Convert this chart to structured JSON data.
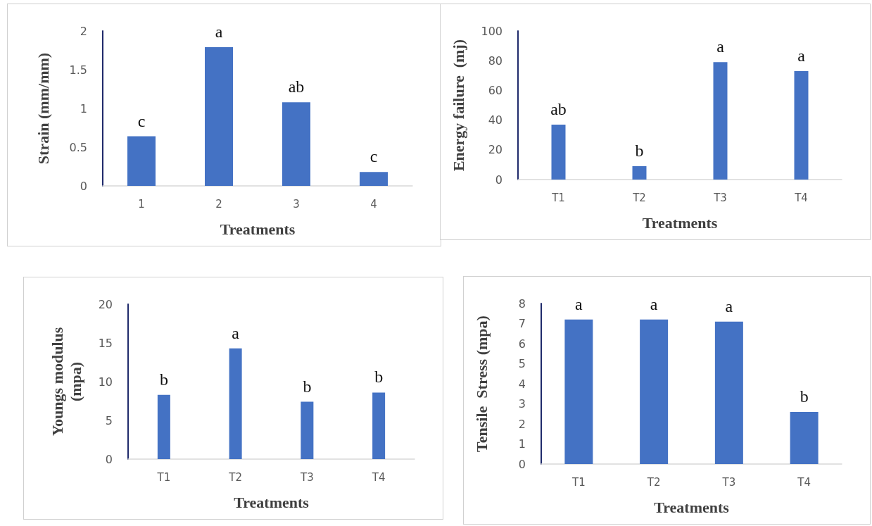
{
  "chart_data": [
    {
      "type": "bar",
      "xlabel": "Treatments",
      "ylabel": "Strain (mm/mm)",
      "categories": [
        "1",
        "2",
        "3",
        "4"
      ],
      "values": [
        0.64,
        1.79,
        1.08,
        0.18
      ],
      "color": "#4472c4",
      "ylim": [
        0,
        2
      ],
      "yticks": [
        0,
        0.5,
        1,
        1.5,
        2
      ],
      "annotations": [
        {
          "text": "c",
          "x": "1",
          "y": 0.64
        },
        {
          "text": "a",
          "x": "2",
          "y": 1.79
        },
        {
          "text": "ab",
          "x": "3",
          "y": 1.08
        },
        {
          "text": "c",
          "x": "4",
          "y": 0.18
        }
      ]
    },
    {
      "type": "bar",
      "xlabel": "Treatments",
      "ylabel": "Energy failure  (mj)",
      "categories": [
        "T1",
        "T2",
        "T3",
        "T4"
      ],
      "values": [
        37,
        9,
        79,
        73
      ],
      "color": "#4472c4",
      "ylim": [
        0,
        100
      ],
      "yticks": [
        0,
        20,
        40,
        60,
        80,
        100
      ],
      "annotations": [
        {
          "text": "ab",
          "x": "T1",
          "y": 37
        },
        {
          "text": "b",
          "x": "T2",
          "y": 9
        },
        {
          "text": "a",
          "x": "T3",
          "y": 79
        },
        {
          "text": "a",
          "x": "T4",
          "y": 73
        }
      ]
    },
    {
      "type": "bar",
      "xlabel": "Treatments",
      "ylabel": "Youngs modulus\n(mpa)",
      "categories": [
        "T1",
        "T2",
        "T3",
        "T4"
      ],
      "values": [
        8.3,
        14.3,
        7.4,
        8.6
      ],
      "color": "#4472c4",
      "ylim": [
        0,
        20
      ],
      "yticks": [
        0,
        5,
        10,
        15,
        20
      ],
      "annotations": [
        {
          "text": "b",
          "x": "T1",
          "y": 8.3
        },
        {
          "text": "a",
          "x": "T2",
          "y": 14.3
        },
        {
          "text": "b",
          "x": "T3",
          "y": 7.4
        },
        {
          "text": "b",
          "x": "T4",
          "y": 8.6
        }
      ]
    },
    {
      "type": "bar",
      "xlabel": "Treatments",
      "ylabel": "Tensile  Stress (mpa)",
      "categories": [
        "T1",
        "T2",
        "T3",
        "T4"
      ],
      "values": [
        7.2,
        7.2,
        7.1,
        2.6
      ],
      "color": "#4472c4",
      "ylim": [
        0,
        8
      ],
      "yticks": [
        0,
        1,
        2,
        3,
        4,
        5,
        6,
        7,
        8
      ],
      "annotations": [
        {
          "text": "a",
          "x": "T1",
          "y": 7.2
        },
        {
          "text": "a",
          "x": "T2",
          "y": 7.2
        },
        {
          "text": "a",
          "x": "T3",
          "y": 7.1
        },
        {
          "text": "b",
          "x": "T4",
          "y": 2.6
        }
      ]
    }
  ]
}
